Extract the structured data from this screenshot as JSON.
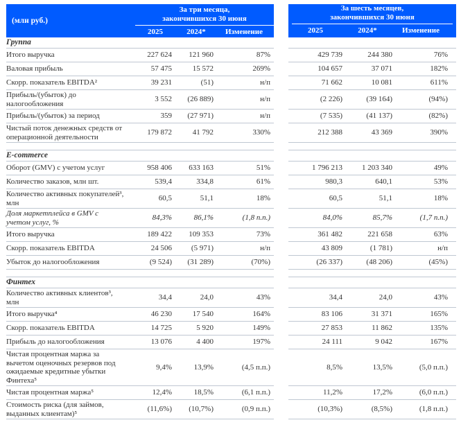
{
  "header": {
    "unit_label": "(млн руб.)",
    "groups": [
      {
        "caption_line1": "За три месяца,",
        "caption_line2": "закончившихся 30 июня",
        "columns": [
          "2025",
          "2024*",
          "Изменение"
        ]
      },
      {
        "caption_line1": "За шесть месяцев,",
        "caption_line2": "закончившихся 30 июня",
        "columns": [
          "2025",
          "2024*",
          "Изменение"
        ]
      }
    ]
  },
  "colors": {
    "header_bg": "#005BFF",
    "header_text": "#FFFFFF",
    "body_text": "#333333",
    "row_border": "#BFC7D2"
  },
  "sections": [
    {
      "title": "Группа",
      "rows": [
        {
          "label": "Итого выручка",
          "q": [
            "227 624",
            "121 960",
            "87%"
          ],
          "h": [
            "429 739",
            "244 380",
            "76%"
          ]
        },
        {
          "label": "Валовая прибыль",
          "q": [
            "57 475",
            "15 572",
            "269%"
          ],
          "h": [
            "104 657",
            "37 071",
            "182%"
          ]
        },
        {
          "label": "Скорр. показатель EBITDA²",
          "q": [
            "39 231",
            "(51)",
            "н/п"
          ],
          "h": [
            "71 662",
            "10 081",
            "611%"
          ]
        },
        {
          "label": "Прибыль/(убыток) до налогообложения",
          "q": [
            "3 552",
            "(26 889)",
            "н/п"
          ],
          "h": [
            "(2 226)",
            "(39 164)",
            "(94%)"
          ]
        },
        {
          "label": "Прибыль/(убыток) за период",
          "q": [
            "359",
            "(27 971)",
            "н/п"
          ],
          "h": [
            "(7 535)",
            "(41 137)",
            "(82%)"
          ]
        },
        {
          "label": "Чистый поток денежных средств от операционной деятельности",
          "q": [
            "179 872",
            "41 792",
            "330%"
          ],
          "h": [
            "212 388",
            "43 369",
            "390%"
          ]
        }
      ]
    },
    {
      "title": "E-commerce",
      "rows": [
        {
          "label": "Оборот (GMV) с учетом услуг",
          "q": [
            "958 406",
            "633 163",
            "51%"
          ],
          "h": [
            "1 796 213",
            "1 203 340",
            "49%"
          ]
        },
        {
          "label": "Количество заказов, млн шт.",
          "q": [
            "539,4",
            "334,8",
            "61%"
          ],
          "h": [
            "980,3",
            "640,1",
            "53%"
          ]
        },
        {
          "label": "Количество активных покупателей³, млн",
          "q": [
            "60,5",
            "51,1",
            "18%"
          ],
          "h": [
            "60,5",
            "51,1",
            "18%"
          ]
        },
        {
          "label": "Доля маркетплейса в GMV с учетом услуг, %",
          "italic": true,
          "q": [
            "84,3%",
            "86,1%",
            "(1,8 п.п.)"
          ],
          "h": [
            "84,0%",
            "85,7%",
            "(1,7 п.п.)"
          ]
        },
        {
          "label": "Итого выручка",
          "q": [
            "189 422",
            "109 353",
            "73%"
          ],
          "h": [
            "361 482",
            "221 658",
            "63%"
          ]
        },
        {
          "label": "Скорр. показатель EBITDA",
          "q": [
            "24 506",
            "(5 971)",
            "н/п"
          ],
          "h": [
            "43 809",
            "(1 781)",
            "н/п"
          ]
        },
        {
          "label": "Убыток до налогообложения",
          "q": [
            "(9 524)",
            "(31 289)",
            "(70%)"
          ],
          "h": [
            "(26 337)",
            "(48 206)",
            "(45%)"
          ]
        }
      ]
    },
    {
      "title": "Финтех",
      "rows": [
        {
          "label": "Количество активных клиентов³, млн",
          "q": [
            "34,4",
            "24,0",
            "43%"
          ],
          "h": [
            "34,4",
            "24,0",
            "43%"
          ]
        },
        {
          "label": "Итого выручка⁴",
          "q": [
            "46 230",
            "17 540",
            "164%"
          ],
          "h": [
            "83 106",
            "31 371",
            "165%"
          ]
        },
        {
          "label": "Скорр. показатель EBITDA",
          "q": [
            "14 725",
            "5 920",
            "149%"
          ],
          "h": [
            "27 853",
            "11 862",
            "135%"
          ]
        },
        {
          "label": "Прибыль до налогообложения",
          "q": [
            "13 076",
            "4 400",
            "197%"
          ],
          "h": [
            "24 111",
            "9 042",
            "167%"
          ]
        },
        {
          "label": "Чистая процентная маржа за вычетом оценочных резервов под ожидаемые кредитные убытки Финтеха⁵",
          "q": [
            "9,4%",
            "13,9%",
            "(4,5 п.п.)"
          ],
          "h": [
            "8,5%",
            "13,5%",
            "(5,0 п.п.)"
          ]
        },
        {
          "label": "Чистая процентная маржа⁵",
          "q": [
            "12,4%",
            "18,5%",
            "(6,1 п.п.)"
          ],
          "h": [
            "11,2%",
            "17,2%",
            "(6,0 п.п.)"
          ]
        },
        {
          "label": "Стоимость риска (для займов, выданных клиентам)⁵",
          "q": [
            "(11,6%)",
            "(10,7%)",
            "(0,9 п.п.)"
          ],
          "h": [
            "(10,3%)",
            "(8,5%)",
            "(1,8 п.п.)"
          ]
        }
      ]
    }
  ]
}
